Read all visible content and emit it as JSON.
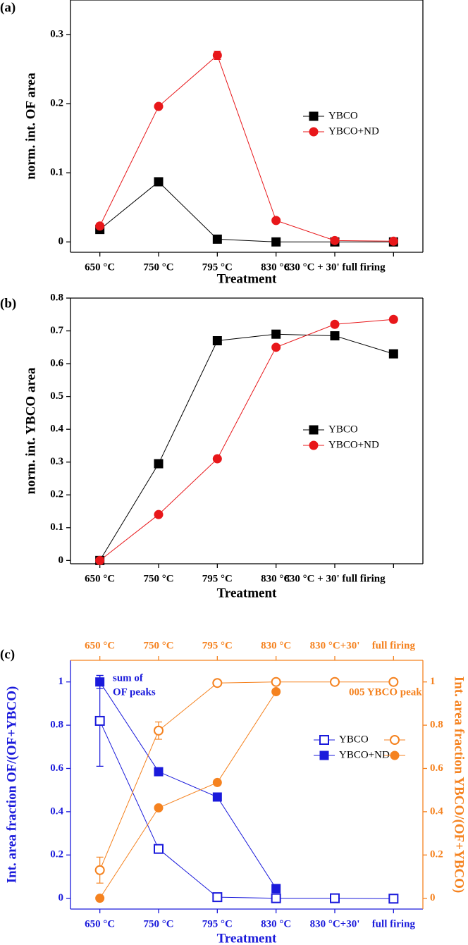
{
  "chart_data": [
    {
      "type": "line",
      "label": "(a)",
      "y_label": "norm. int. OF area",
      "x_label": "Treatment",
      "categories": [
        "650 °C",
        "750 °C",
        "795 °C",
        "830 °C",
        "830 °C + 30' full firing",
        null
      ],
      "ylim": [
        -0.015,
        0.35
      ],
      "yticks": [
        0,
        0.1,
        0.2,
        0.3
      ],
      "legend": "right",
      "series": [
        {
          "name": "YBCO",
          "color": "#000000",
          "marker": "square",
          "filled": true,
          "values": [
            0.018,
            0.087,
            0.004,
            0.0,
            0.0,
            0.0
          ]
        },
        {
          "name": "YBCO+ND",
          "color": "#e8171a",
          "marker": "circle",
          "filled": true,
          "values": [
            0.023,
            0.196,
            0.27,
            0.031,
            0.002,
            0.001
          ],
          "errors": [
            0.004,
            0.002,
            0.006,
            0.002,
            null,
            null
          ]
        }
      ]
    },
    {
      "type": "line",
      "label": "(b)",
      "y_label": "norm. int. YBCO area",
      "x_label": "Treatment",
      "categories": [
        "650 °C",
        "750 °C",
        "795 °C",
        "830 °C",
        "830 °C + 30' full firing",
        null
      ],
      "ylim": [
        -0.01,
        0.8
      ],
      "yticks": [
        0,
        0.1,
        0.2,
        0.3,
        0.4,
        0.5,
        0.6,
        0.7,
        0.8
      ],
      "legend": "right",
      "series": [
        {
          "name": "YBCO",
          "color": "#000000",
          "marker": "square",
          "filled": true,
          "values": [
            0.0,
            0.295,
            0.67,
            0.69,
            0.685,
            0.63
          ]
        },
        {
          "name": "YBCO+ND",
          "color": "#e8171a",
          "marker": "circle",
          "filled": true,
          "values": [
            0.0,
            0.14,
            0.31,
            0.65,
            0.72,
            0.735
          ]
        }
      ]
    },
    {
      "type": "line",
      "label": "(c)",
      "y_label": "Int. area fraction OF/(OF+YBCO)",
      "y2_label": "Int. area fraction YBCO/(OF+YBCO)",
      "x_label": "Treatment",
      "categories": [
        "650 °C",
        "750 °C",
        "795 °C",
        "830 °C",
        "830 °C+30'",
        "full firing"
      ],
      "top_categories": [
        "650 °C",
        "750 °C",
        "795 °C",
        "830 °C",
        "830 °C+30'",
        "full firing"
      ],
      "ylim": [
        -0.05,
        1.1
      ],
      "yticks": [
        0,
        0.2,
        0.4,
        0.6,
        0.8,
        1
      ],
      "y2lim": [
        -0.05,
        1.1
      ],
      "y2ticks": [
        0,
        0.2,
        0.4,
        0.6,
        0.8,
        1
      ],
      "y_color": "#1a1adb",
      "y2_color": "#f5821f",
      "legend": "right",
      "annotations": [
        {
          "text": [
            "sum of",
            "OF peaks"
          ],
          "color": "#1a1adb"
        },
        {
          "text": [
            "005 YBCO peak"
          ],
          "color": "#f5821f"
        }
      ],
      "series": [
        {
          "name": "YBCO",
          "color": "#1a1adb",
          "marker": "square",
          "filled": false,
          "values": [
            0.82,
            0.228,
            0.005,
            0.0,
            0.0,
            -0.002
          ],
          "errors": [
            0.21,
            null,
            null,
            null,
            null,
            null
          ]
        },
        {
          "name": "YBCO+ND",
          "color": "#1a1adb",
          "marker": "square",
          "filled": true,
          "values": [
            1.0,
            0.585,
            0.468,
            0.045,
            null,
            null
          ],
          "errors": [
            0.03,
            null,
            null,
            null,
            null,
            null
          ]
        },
        {
          "color": "#f5821f",
          "marker": "circle",
          "filled": false,
          "axis": "y2",
          "values": [
            0.13,
            0.775,
            0.995,
            1.0,
            1.0,
            1.0
          ],
          "errors": [
            0.06,
            0.04,
            null,
            null,
            null,
            null
          ]
        },
        {
          "color": "#f5821f",
          "marker": "circle",
          "filled": true,
          "axis": "y2",
          "values": [
            0.0,
            0.418,
            0.535,
            0.955,
            null,
            null
          ]
        }
      ]
    }
  ]
}
